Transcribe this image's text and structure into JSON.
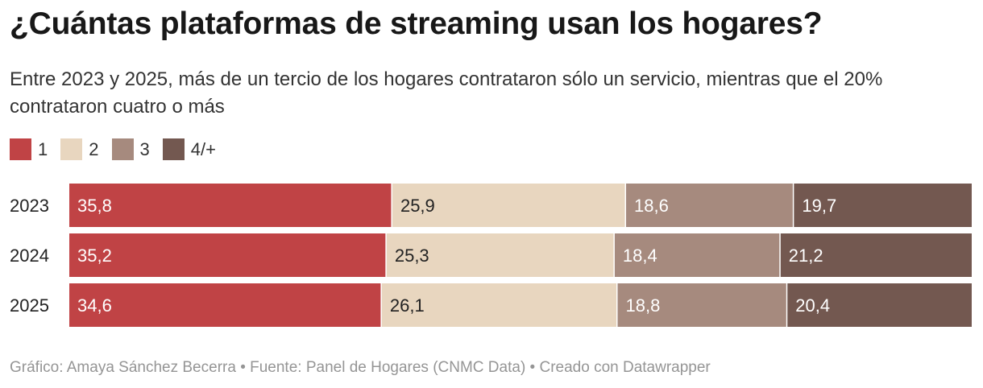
{
  "title": "¿Cuántas plataformas de streaming usan los hogares?",
  "subtitle": "Entre 2023 y 2025, más de un tercio de los hogares contrataron sólo un servicio, mientras que el 20% contrataron cuatro o más",
  "footer": "Gráfico: Amaya Sánchez Becerra • Fuente: Panel de Hogares (CNMC Data) • Creado con Datawrapper",
  "chart_data": {
    "type": "bar",
    "orientation": "horizontal",
    "stacked": true,
    "categories": [
      "2023",
      "2024",
      "2025"
    ],
    "series": [
      {
        "name": "1",
        "color": "#c04345",
        "label_color": "#ffffff",
        "values": [
          35.8,
          35.2,
          34.6
        ],
        "labels": [
          "35,8",
          "35,2",
          "34,6"
        ]
      },
      {
        "name": "2",
        "color": "#e8d6bf",
        "label_color": "#222222",
        "values": [
          25.9,
          25.3,
          26.1
        ],
        "labels": [
          "25,9",
          "25,3",
          "26,1"
        ]
      },
      {
        "name": "3",
        "color": "#a68a7e",
        "label_color": "#ffffff",
        "values": [
          18.6,
          18.4,
          18.8
        ],
        "labels": [
          "18,6",
          "18,4",
          "18,8"
        ]
      },
      {
        "name": "4/+",
        "color": "#735850",
        "label_color": "#ffffff",
        "values": [
          19.7,
          21.2,
          20.4
        ],
        "labels": [
          "19,7",
          "21,2",
          "20,4"
        ]
      }
    ],
    "legend_position": "top-left",
    "grid": false
  }
}
